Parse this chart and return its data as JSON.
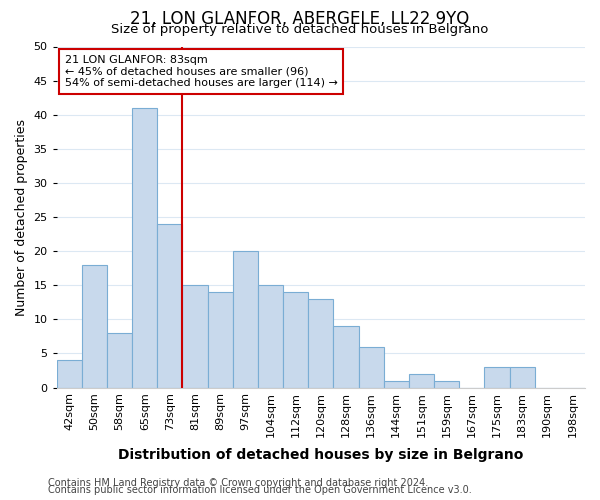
{
  "title": "21, LON GLANFOR, ABERGELE, LL22 9YQ",
  "subtitle": "Size of property relative to detached houses in Belgrano",
  "xlabel": "Distribution of detached houses by size in Belgrano",
  "ylabel": "Number of detached properties",
  "bar_color": "#c8d9ec",
  "bar_edge_color": "#7aadd4",
  "categories": [
    "42sqm",
    "50sqm",
    "58sqm",
    "65sqm",
    "73sqm",
    "81sqm",
    "89sqm",
    "97sqm",
    "104sqm",
    "112sqm",
    "120sqm",
    "128sqm",
    "136sqm",
    "144sqm",
    "151sqm",
    "159sqm",
    "167sqm",
    "175sqm",
    "183sqm",
    "190sqm",
    "198sqm"
  ],
  "values": [
    4,
    18,
    8,
    41,
    24,
    15,
    14,
    20,
    15,
    14,
    13,
    9,
    6,
    1,
    2,
    1,
    0,
    3,
    3,
    0,
    0
  ],
  "ylim": [
    0,
    50
  ],
  "yticks": [
    0,
    5,
    10,
    15,
    20,
    25,
    30,
    35,
    40,
    45,
    50
  ],
  "property_line_color": "#cc0000",
  "property_line_index": 5,
  "annotation_text": "21 LON GLANFOR: 83sqm\n← 45% of detached houses are smaller (96)\n54% of semi-detached houses are larger (114) →",
  "annotation_box_color": "#ffffff",
  "annotation_box_edge_color": "#cc0000",
  "footer_line1": "Contains HM Land Registry data © Crown copyright and database right 2024.",
  "footer_line2": "Contains public sector information licensed under the Open Government Licence v3.0.",
  "background_color": "#ffffff",
  "grid_color": "#dce8f3",
  "title_fontsize": 12,
  "subtitle_fontsize": 9.5,
  "xlabel_fontsize": 10,
  "ylabel_fontsize": 9,
  "tick_fontsize": 8,
  "footer_fontsize": 7,
  "annotation_fontsize": 8
}
